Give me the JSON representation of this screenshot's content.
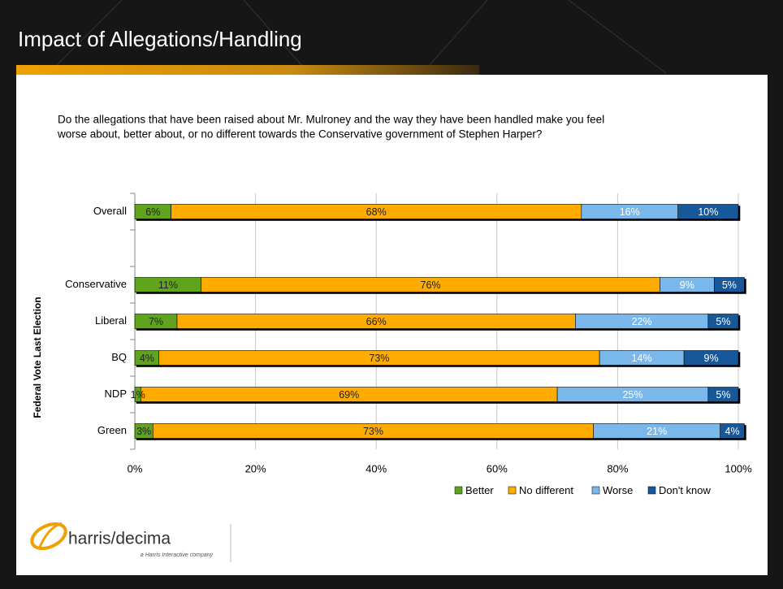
{
  "header": {
    "title": "Impact of Allegations/Handling"
  },
  "chart_data": {
    "type": "stacked_barh",
    "subtitle": [
      "Do the allegations that have been raised about Mr. Mulroney and the way they have been handled make you feel",
      "worse about, better about, or no different towards the Conservative government of Stephen Harper?"
    ],
    "y_label": "Federal Vote Last Election",
    "categories": [
      "Overall",
      null,
      "Conservative",
      "Liberal",
      "BQ",
      "NDP",
      "Green"
    ],
    "series": [
      {
        "name": "Better",
        "color": "#5ea41c",
        "label_color": "#222222",
        "values": [
          6,
          null,
          11,
          7,
          4,
          1,
          3
        ],
        "value_labels": [
          "6%",
          null,
          "11%",
          "7%",
          "4%",
          "1%",
          "3%"
        ]
      },
      {
        "name": "No different",
        "color": "#ffab00",
        "label_color": "#222222",
        "values": [
          68,
          null,
          76,
          66,
          73,
          69,
          73
        ],
        "value_labels": [
          "68%",
          null,
          "76%",
          "66%",
          "73%",
          "69%",
          "73%"
        ]
      },
      {
        "name": "Worse",
        "color": "#7ab8ec",
        "label_color": "#ffffff",
        "values": [
          16,
          null,
          9,
          22,
          14,
          25,
          21
        ],
        "value_labels": [
          "16%",
          null,
          "9%",
          "22%",
          "14%",
          "25%",
          "21%"
        ]
      },
      {
        "name": "Don't know",
        "color": "#15589a",
        "label_color": "#ffffff",
        "values": [
          10,
          null,
          5,
          5,
          9,
          5,
          4
        ],
        "value_labels": [
          "10%",
          null,
          "5%",
          "5%",
          "9%",
          "5%",
          "4%"
        ]
      }
    ],
    "xlim": [
      0,
      100
    ],
    "xticks": [
      {
        "value": 0,
        "label": "0%"
      },
      {
        "value": 20,
        "label": "20%"
      },
      {
        "value": 40,
        "label": "40%"
      },
      {
        "value": 60,
        "label": "60%"
      },
      {
        "value": 80,
        "label": "80%"
      },
      {
        "value": 100,
        "label": "100%"
      }
    ],
    "grid": true,
    "legend": "bottom-right"
  },
  "logo": {
    "brand": "harris/decima",
    "tagline": "a Harris Interactive company"
  }
}
